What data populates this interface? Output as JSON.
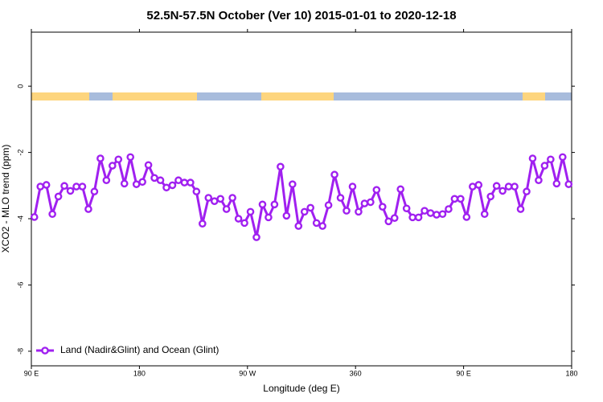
{
  "chart_data": {
    "type": "line",
    "title": "52.5N-57.5N October (Ver 10)   2015-01-01 to 2020-12-18",
    "x_label": "Longitude (deg E)",
    "y_label": "XCO2 - MLO trend (ppm)",
    "x": [
      92.5,
      97.5,
      102.5,
      107.5,
      112.5,
      117.5,
      122.5,
      127.5,
      132.5,
      137.5,
      142.5,
      147.5,
      152.5,
      157.5,
      162.5,
      167.5,
      172.5,
      177.5,
      182.5,
      187.5,
      192.5,
      197.5,
      202.5,
      207.5,
      212.5,
      217.5,
      222.5,
      227.5,
      232.5,
      237.5,
      242.5,
      247.5,
      252.5,
      257.5,
      262.5,
      267.5,
      272.5,
      277.5,
      282.5,
      287.5,
      292.5,
      297.5,
      302.5,
      307.5,
      312.5,
      317.5,
      322.5,
      327.5,
      332.5,
      337.5,
      342.5,
      347.5,
      352.5,
      357.5,
      362.5,
      367.5,
      372.5,
      377.5,
      382.5,
      387.5,
      392.5,
      397.5,
      402.5,
      407.5,
      412.5,
      417.5,
      422.5,
      427.5,
      432.5,
      437.5,
      442.5,
      447.5,
      452.5,
      457.5,
      462.5,
      467.5,
      472.5,
      477.5,
      482.5,
      487.5,
      492.5,
      497.5,
      502.5,
      507.5,
      512.5,
      517.5,
      522.5,
      527.5,
      532.5,
      537.5
    ],
    "series": [
      {
        "name": "Land (Nadir&Glint) and Ocean (Glint)",
        "color": "#a020f0",
        "values": [
          -3.95,
          -3.03,
          -2.98,
          -3.86,
          -3.33,
          -3.01,
          -3.16,
          -3.03,
          -3.03,
          -3.71,
          -3.18,
          -2.18,
          -2.84,
          -2.4,
          -2.21,
          -2.94,
          -2.14,
          -2.96,
          -2.89,
          -2.38,
          -2.77,
          -2.84,
          -3.06,
          -2.99,
          -2.84,
          -2.91,
          -2.91,
          -3.18,
          -4.15,
          -3.37,
          -3.47,
          -3.4,
          -3.71,
          -3.37,
          -4.0,
          -4.13,
          -3.79,
          -4.56,
          -3.57,
          -3.96,
          -3.57,
          -2.43,
          -3.91,
          -2.96,
          -4.22,
          -3.79,
          -3.67,
          -4.13,
          -4.22,
          -3.59,
          -2.67,
          -3.37,
          -3.76,
          -3.03,
          -3.79,
          -3.54,
          -3.5,
          -3.13,
          -3.64,
          -4.08,
          -3.98,
          -3.11,
          -3.69,
          -3.96,
          -3.96,
          -3.76,
          -3.83,
          -3.88,
          -3.86,
          -3.71,
          -3.4,
          -3.4,
          -3.95,
          -3.03,
          -2.98,
          -3.86,
          -3.33,
          -3.01,
          -3.16,
          -3.03,
          -3.03,
          -3.71,
          -3.18,
          -2.18,
          -2.84,
          -2.4,
          -2.21,
          -2.94,
          -2.14,
          -2.96
        ]
      }
    ],
    "xlim": [
      90,
      540
    ],
    "xticks": [
      {
        "value": 90,
        "label": "90 E"
      },
      {
        "value": 180,
        "label": "180"
      },
      {
        "value": 270,
        "label": "90 W"
      },
      360,
      {
        "value": 450,
        "label": "90 E"
      },
      {
        "value": 540,
        "label": "180"
      }
    ],
    "ylim": [
      -8.44,
      1.63
    ],
    "yticks": [
      0,
      -2,
      -4,
      -6,
      -8
    ],
    "legend": "bottom-left"
  }
}
